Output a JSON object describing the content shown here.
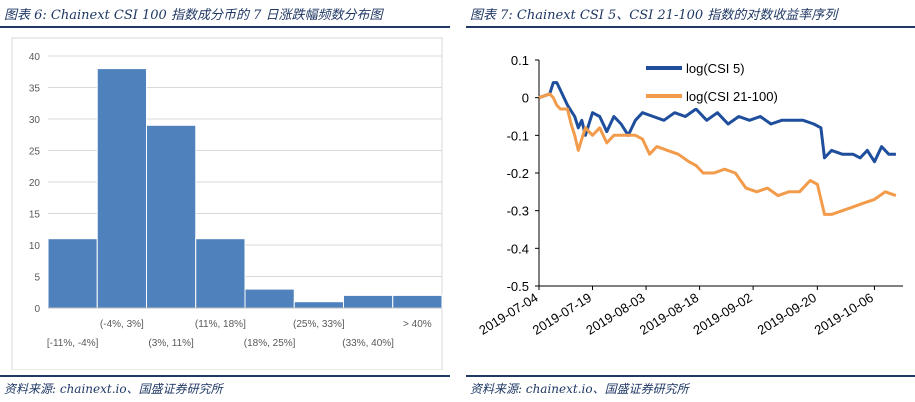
{
  "left": {
    "figure_title": "图表 6:  Chainext CSI 100 指数成分币的 7 日涨跌幅频数分布图",
    "source": "资料来源:  chainext.io、国盛证券研究所"
  },
  "right": {
    "figure_title": "图表 7:  Chainext CSI 5、CSI 21-100 指数的对数收益率序列",
    "source": "资料来源:  chainext.io、国盛证券研究所"
  },
  "colors": {
    "title": "#1f3864",
    "bar": "#4f81bd",
    "csi5": "#1f4e9c",
    "csi21": "#f29b4b"
  },
  "chart_data": [
    {
      "type": "bar",
      "categories": [
        "[-11%, -4%]",
        "(-4%, 3%]",
        "(3%, 11%]",
        "(11%, 18%]",
        "(18%, 25%]",
        "(25%, 33%]",
        "(33%, 40%]",
        "> 40%"
      ],
      "values": [
        11,
        38,
        29,
        11,
        3,
        1,
        2,
        2
      ],
      "ylim": [
        0,
        40
      ],
      "yticks": [
        "0",
        "5",
        "10",
        "15",
        "20",
        "25",
        "30",
        "35",
        "40"
      ],
      "grid": true
    },
    {
      "type": "line",
      "ylim": [
        -0.5,
        0.1
      ],
      "yticks": [
        "0.1",
        "0",
        "-0.1",
        "-0.2",
        "-0.3",
        "-0.4",
        "-0.5"
      ],
      "xticks": [
        "2019-07-04",
        "2019-07-19",
        "2019-08-03",
        "2019-08-18",
        "2019-09-02",
        "2019-09-20",
        "2019-10-06"
      ],
      "legend_position": "top",
      "series": [
        {
          "name": "log(CSI 5)",
          "x": [
            "2019-07-04",
            "2019-07-07",
            "2019-07-08",
            "2019-07-09",
            "2019-07-10",
            "2019-07-12",
            "2019-07-14",
            "2019-07-15",
            "2019-07-16",
            "2019-07-17",
            "2019-07-19",
            "2019-07-21",
            "2019-07-23",
            "2019-07-25",
            "2019-07-27",
            "2019-07-29",
            "2019-07-31",
            "2019-08-02",
            "2019-08-05",
            "2019-08-08",
            "2019-08-11",
            "2019-08-14",
            "2019-08-17",
            "2019-08-20",
            "2019-08-23",
            "2019-08-26",
            "2019-08-29",
            "2019-09-01",
            "2019-09-04",
            "2019-09-07",
            "2019-09-10",
            "2019-09-13",
            "2019-09-16",
            "2019-09-19",
            "2019-09-21",
            "2019-09-22",
            "2019-09-24",
            "2019-09-27",
            "2019-09-30",
            "2019-10-02",
            "2019-10-04",
            "2019-10-06",
            "2019-10-08",
            "2019-10-10",
            "2019-10-12"
          ],
          "values": [
            0.0,
            0.01,
            0.04,
            0.04,
            0.02,
            -0.02,
            -0.05,
            -0.08,
            -0.06,
            -0.1,
            -0.04,
            -0.05,
            -0.09,
            -0.05,
            -0.07,
            -0.1,
            -0.06,
            -0.04,
            -0.05,
            -0.06,
            -0.04,
            -0.05,
            -0.03,
            -0.06,
            -0.04,
            -0.07,
            -0.05,
            -0.06,
            -0.05,
            -0.07,
            -0.06,
            -0.06,
            -0.06,
            -0.07,
            -0.08,
            -0.16,
            -0.14,
            -0.15,
            -0.15,
            -0.16,
            -0.14,
            -0.17,
            -0.13,
            -0.15,
            -0.15
          ]
        },
        {
          "name": "log(CSI 21-100)",
          "x": [
            "2019-07-04",
            "2019-07-07",
            "2019-07-08",
            "2019-07-09",
            "2019-07-10",
            "2019-07-12",
            "2019-07-13",
            "2019-07-14",
            "2019-07-15",
            "2019-07-16",
            "2019-07-17",
            "2019-07-19",
            "2019-07-21",
            "2019-07-23",
            "2019-07-25",
            "2019-07-27",
            "2019-07-29",
            "2019-07-31",
            "2019-08-02",
            "2019-08-04",
            "2019-08-06",
            "2019-08-09",
            "2019-08-12",
            "2019-08-15",
            "2019-08-17",
            "2019-08-19",
            "2019-08-22",
            "2019-08-25",
            "2019-08-28",
            "2019-08-31",
            "2019-09-03",
            "2019-09-06",
            "2019-09-09",
            "2019-09-12",
            "2019-09-15",
            "2019-09-18",
            "2019-09-20",
            "2019-09-22",
            "2019-09-24",
            "2019-09-27",
            "2019-09-30",
            "2019-10-03",
            "2019-10-06",
            "2019-10-09",
            "2019-10-12"
          ],
          "values": [
            0.0,
            0.01,
            0.0,
            -0.02,
            -0.03,
            -0.03,
            -0.07,
            -0.1,
            -0.14,
            -0.11,
            -0.08,
            -0.1,
            -0.08,
            -0.12,
            -0.1,
            -0.1,
            -0.1,
            -0.1,
            -0.11,
            -0.15,
            -0.13,
            -0.14,
            -0.15,
            -0.17,
            -0.18,
            -0.2,
            -0.2,
            -0.19,
            -0.2,
            -0.24,
            -0.25,
            -0.24,
            -0.26,
            -0.25,
            -0.25,
            -0.22,
            -0.23,
            -0.31,
            -0.31,
            -0.3,
            -0.29,
            -0.28,
            -0.27,
            -0.25,
            -0.26
          ]
        }
      ]
    }
  ]
}
